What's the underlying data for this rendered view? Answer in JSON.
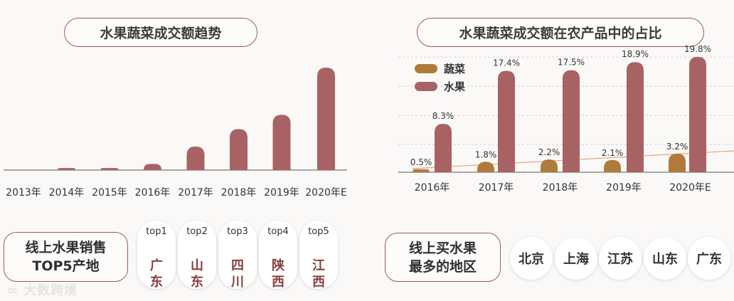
{
  "colors": {
    "fruit": "#a86264",
    "vegetable": "#b07a3a",
    "border": "#9a5a5a",
    "trend": "#e8a37a",
    "axis": "#555555"
  },
  "chart_data": [
    {
      "type": "bar",
      "title": "水果蔬菜成交额趋势",
      "categories": [
        "2013年",
        "2014年",
        "2015年",
        "2016年",
        "2017年",
        "2018年",
        "2019年",
        "2020年E"
      ],
      "values": [
        0,
        2,
        2,
        6,
        23,
        40,
        54,
        100
      ]
    },
    {
      "type": "bar",
      "title": "水果蔬菜成交额在农产品中的占比",
      "categories": [
        "2016年",
        "2017年",
        "2018年",
        "2019年",
        "2020年E"
      ],
      "series": [
        {
          "name": "蔬菜",
          "values": [
            0.5,
            1.8,
            2.2,
            2.1,
            3.2
          ],
          "labels": [
            "0.5%",
            "1.8%",
            "2.2%",
            "2.1%",
            "3.2%"
          ]
        },
        {
          "name": "水果",
          "values": [
            8.3,
            17.4,
            17.5,
            18.9,
            19.8
          ],
          "labels": [
            "8.3%",
            "17.4%",
            "17.5%",
            "18.9%",
            "19.8%"
          ]
        }
      ],
      "legend": "top-left",
      "grid": true,
      "ylim": [
        0,
        21
      ]
    }
  ],
  "top5": {
    "title_line1": "线上水果销售",
    "title_line2": "TOP5产地",
    "items": [
      {
        "rank": "top1",
        "province": "广东"
      },
      {
        "rank": "top2",
        "province": "山东"
      },
      {
        "rank": "top3",
        "province": "四川"
      },
      {
        "rank": "top4",
        "province": "陕西"
      },
      {
        "rank": "top5",
        "province": "江西"
      }
    ]
  },
  "regions": {
    "title_line1": "线上买水果",
    "title_line2": "最多的地区",
    "items": [
      "北京",
      "上海",
      "江苏",
      "山东",
      "广东"
    ]
  },
  "watermark": "大数跨境"
}
